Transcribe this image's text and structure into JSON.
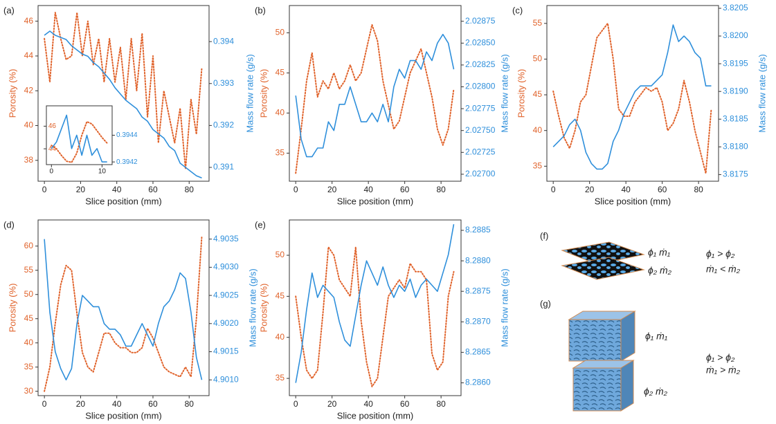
{
  "chart_data": [
    {
      "type": "line",
      "label": "(a)",
      "xlabel": "Slice position (mm)",
      "ylabel": "Porosity (%)",
      "y2label": "Mass flow rate (g/s)",
      "x": [
        0,
        3,
        6,
        9,
        12,
        15,
        18,
        21,
        24,
        27,
        30,
        33,
        36,
        39,
        42,
        45,
        48,
        51,
        54,
        57,
        60,
        63,
        66,
        69,
        72,
        75,
        78,
        81,
        84,
        87
      ],
      "series": [
        {
          "color": "#e0622a",
          "dash": "dotted",
          "values": [
            45,
            42.5,
            46.5,
            45,
            43.8,
            44,
            46.5,
            44,
            46,
            43.5,
            45,
            42.5,
            45,
            42.5,
            44.5,
            41.5,
            45,
            42,
            45.3,
            40.5,
            44,
            39,
            42,
            40.5,
            39,
            41,
            37.5,
            41.5,
            39.5,
            43.3
          ]
        },
        {
          "color": "#2e8fdb",
          "dash": "solid",
          "axis": "y2",
          "values": [
            0.39415,
            0.39425,
            0.39415,
            0.3941,
            0.39405,
            0.3939,
            0.3938,
            0.3937,
            0.39365,
            0.3935,
            0.3934,
            0.39325,
            0.3931,
            0.3929,
            0.39275,
            0.3926,
            0.3925,
            0.3924,
            0.3922,
            0.3921,
            0.3919,
            0.3918,
            0.3917,
            0.3915,
            0.3914,
            0.3911,
            0.391,
            0.3909,
            0.3908,
            0.39075
          ]
        }
      ],
      "xlim": [
        -3.5,
        91
      ],
      "xticks": [
        0,
        20,
        40,
        60,
        80
      ],
      "ylim": [
        36.8,
        46.9
      ],
      "yticks": [
        38,
        40,
        42,
        44,
        46
      ],
      "y2lim": [
        0.39067,
        0.39486
      ],
      "y2ticks": [
        0.391,
        0.392,
        0.393,
        0.394
      ]
    },
    {
      "type": "line",
      "label": "(b)",
      "xlabel": "Slice position (mm)",
      "ylabel": "Porosity (%)",
      "y2label": "Mass flow rate (g/s)",
      "x": [
        0,
        3,
        6,
        9,
        12,
        15,
        18,
        21,
        24,
        27,
        30,
        33,
        36,
        39,
        42,
        45,
        48,
        51,
        54,
        57,
        60,
        63,
        66,
        69,
        72,
        75,
        78,
        81,
        84,
        87
      ],
      "series": [
        {
          "color": "#e0622a",
          "dash": "dotted",
          "values": [
            32.5,
            38,
            44,
            47.5,
            42,
            44,
            43,
            45,
            43,
            44,
            46,
            44,
            45,
            48,
            51,
            49,
            44,
            41,
            38,
            39,
            42,
            45,
            46.5,
            48,
            45,
            42,
            38,
            36,
            38,
            43
          ]
        },
        {
          "color": "#2e8fdb",
          "dash": "solid",
          "axis": "y2",
          "values": [
            2.0279,
            2.0274,
            2.0272,
            2.0272,
            2.0273,
            2.0273,
            2.0276,
            2.0275,
            2.0278,
            2.0278,
            2.028,
            2.0278,
            2.0276,
            2.0276,
            2.0277,
            2.0276,
            2.0278,
            2.0276,
            2.028,
            2.0282,
            2.0281,
            2.0283,
            2.0283,
            2.0282,
            2.0284,
            2.0283,
            2.0285,
            2.0286,
            2.0285,
            2.0282
          ]
        }
      ],
      "xlim": [
        -3.5,
        91
      ],
      "xticks": [
        0,
        20,
        40,
        60,
        80
      ],
      "ylim": [
        31.5,
        53.4
      ],
      "yticks": [
        35,
        40,
        45,
        50
      ],
      "y2lim": [
        2.02692,
        2.02893
      ],
      "y2ticks": [
        {
          "value": 2.027,
          "label": "2.02700"
        },
        2.02725,
        {
          "value": 2.0275,
          "label": "2.02750"
        },
        2.02775,
        {
          "value": 2.028,
          "label": "2.02800"
        },
        2.02825,
        {
          "value": 2.0285,
          "label": "2.02850"
        },
        2.02875
      ]
    },
    {
      "type": "line",
      "label": "(c)",
      "xlabel": "Slice position (mm)",
      "ylabel": "Porosity (%)",
      "y2label": "Mass flow rate (g/s)",
      "x": [
        0,
        3,
        6,
        9,
        12,
        15,
        18,
        21,
        24,
        27,
        30,
        33,
        36,
        39,
        42,
        45,
        48,
        51,
        54,
        57,
        60,
        63,
        66,
        69,
        72,
        75,
        78,
        81,
        84,
        87
      ],
      "series": [
        {
          "color": "#e0622a",
          "dash": "dotted",
          "values": [
            45.5,
            42,
            39,
            37.5,
            40,
            44,
            45,
            49,
            53,
            54,
            55,
            50,
            43,
            42,
            42,
            44,
            45,
            46,
            45.5,
            46,
            44,
            40,
            41,
            43,
            47,
            44,
            40,
            37,
            34,
            43
          ]
        },
        {
          "color": "#2e8fdb",
          "dash": "solid",
          "axis": "y2",
          "values": [
            3.818,
            3.8181,
            3.8182,
            3.8184,
            3.8185,
            3.8183,
            3.8179,
            3.8177,
            3.8176,
            3.8176,
            3.8177,
            3.8181,
            3.8183,
            3.8186,
            3.8188,
            3.819,
            3.8191,
            3.8191,
            3.8191,
            3.8192,
            3.8193,
            3.8197,
            3.8202,
            3.8199,
            3.82,
            3.8199,
            3.8197,
            3.8196,
            3.8191,
            3.8191
          ]
        }
      ],
      "xlim": [
        -3.5,
        91
      ],
      "xticks": [
        0,
        20,
        40,
        60,
        80
      ],
      "ylim": [
        32.9,
        57.5
      ],
      "yticks": [
        35,
        40,
        45,
        50,
        55
      ],
      "y2lim": [
        3.81738,
        3.82055
      ],
      "y2ticks": [
        3.8175,
        {
          "value": 3.818,
          "label": "3.8180"
        },
        3.8185,
        {
          "value": 3.819,
          "label": "3.8190"
        },
        3.8195,
        {
          "value": 3.82,
          "label": "3.8200"
        },
        3.8205
      ]
    },
    {
      "type": "line",
      "label": "(d)",
      "xlabel": "Slice position (mm)",
      "ylabel": "Porosity (%)",
      "y2label": "Mass flow rate (g/s)",
      "x": [
        0,
        3,
        6,
        9,
        12,
        15,
        18,
        21,
        24,
        27,
        30,
        33,
        36,
        39,
        42,
        45,
        48,
        51,
        54,
        57,
        60,
        63,
        66,
        69,
        72,
        75,
        78,
        81,
        84,
        87
      ],
      "series": [
        {
          "color": "#e0622a",
          "dash": "dotted",
          "values": [
            30,
            35,
            44,
            52,
            56,
            55,
            46,
            38,
            35,
            34,
            38,
            42,
            42,
            40,
            39,
            39,
            38,
            38,
            39,
            43,
            41,
            38,
            35,
            34,
            33.5,
            33,
            35,
            33,
            45,
            62
          ]
        },
        {
          "color": "#2e8fdb",
          "dash": "solid",
          "axis": "y2",
          "values": [
            4.9035,
            4.9022,
            4.9015,
            4.9012,
            4.901,
            4.9012,
            4.902,
            4.9025,
            4.9024,
            4.9023,
            4.9023,
            4.902,
            4.9019,
            4.9019,
            4.9018,
            4.9016,
            4.9016,
            4.9018,
            4.902,
            4.9018,
            4.9016,
            4.902,
            4.9023,
            4.9024,
            4.9026,
            4.9029,
            4.9028,
            4.9022,
            4.9014,
            4.901
          ]
        }
      ],
      "xlim": [
        -3.5,
        91
      ],
      "xticks": [
        0,
        20,
        40,
        60,
        80
      ],
      "ylim": [
        29.1,
        65.4
      ],
      "yticks": [
        30,
        35,
        40,
        45,
        50,
        55,
        60
      ],
      "y2lim": [
        4.90072,
        4.90384
      ],
      "y2ticks": [
        {
          "value": 4.901,
          "label": "4.9010"
        },
        4.9015,
        {
          "value": 4.902,
          "label": "4.9020"
        },
        4.9025,
        {
          "value": 4.903,
          "label": "4.9030"
        },
        4.9035
      ]
    },
    {
      "type": "line",
      "label": "(e)",
      "xlabel": "Slice position (mm)",
      "ylabel": "Porosity (%)",
      "y2label": "Mass flow rate (g/s)",
      "x": [
        0,
        3,
        6,
        9,
        12,
        15,
        18,
        21,
        24,
        27,
        30,
        33,
        36,
        39,
        42,
        45,
        48,
        51,
        54,
        57,
        60,
        63,
        66,
        69,
        72,
        75,
        78,
        81,
        84,
        87
      ],
      "series": [
        {
          "color": "#e0622a",
          "dash": "dotted",
          "values": [
            45,
            40,
            36,
            35,
            36,
            43,
            51,
            50,
            47,
            46,
            45,
            51,
            42,
            37,
            34,
            35,
            40,
            45,
            46,
            47,
            46,
            49,
            48,
            48,
            47,
            38,
            36,
            37,
            45,
            48
          ]
        },
        {
          "color": "#2e8fdb",
          "dash": "solid",
          "axis": "y2",
          "values": [
            8.286,
            8.2865,
            8.2872,
            8.2878,
            8.2874,
            8.2876,
            8.2875,
            8.2874,
            8.287,
            8.2867,
            8.2866,
            8.2871,
            8.2876,
            8.288,
            8.2878,
            8.2876,
            8.2879,
            8.2876,
            8.2874,
            8.2876,
            8.2875,
            8.2877,
            8.2874,
            8.2876,
            8.2877,
            8.2876,
            8.2875,
            8.2878,
            8.2881,
            8.2886
          ]
        }
      ],
      "xlim": [
        -3.5,
        91
      ],
      "xticks": [
        0,
        20,
        40,
        60,
        80
      ],
      "ylim": [
        32.9,
        54.3
      ],
      "yticks": [
        35,
        40,
        45,
        50
      ],
      "y2lim": [
        8.28579,
        8.28867
      ],
      "y2ticks": [
        {
          "value": 8.286,
          "label": "8.2860"
        },
        8.2865,
        {
          "value": 8.287,
          "label": "8.2870"
        },
        8.2875,
        {
          "value": 8.288,
          "label": "8.2880"
        },
        8.2885
      ]
    },
    {
      "type": "line",
      "x": [
        0,
        1,
        2,
        3,
        4,
        5,
        6,
        7,
        8,
        9,
        10,
        11
      ],
      "series": [
        {
          "color": "#e0622a",
          "dash": "dotted",
          "values": [
            44.3,
            44,
            43.4,
            42.9,
            42.8,
            43.6,
            45.2,
            46.4,
            46.2,
            45.6,
            45,
            44.5
          ]
        },
        {
          "color": "#2e8fdb",
          "dash": "solid",
          "axis": "y2",
          "values": [
            0.3943,
            0.39435,
            0.39445,
            0.39455,
            0.3943,
            0.3944,
            0.39425,
            0.3944,
            0.39425,
            0.3943,
            0.3942,
            0.3942
          ]
        }
      ],
      "xlim": [
        -1,
        12
      ],
      "xticks": [
        0,
        10
      ],
      "ylim": [
        42.6,
        47.8
      ],
      "yticks": [
        44,
        46
      ],
      "y2lim": [
        0.39418,
        0.39462
      ],
      "y2ticks": [
        0.3942,
        0.3944
      ]
    }
  ],
  "diagrams": [
    {
      "label": "(f)",
      "labels": [
        "ϕ₁ ṁ₁",
        "ϕ₂ ṁ₂"
      ],
      "relations": [
        "ϕ₁ > ϕ₂",
        "ṁ₁ < ṁ₂"
      ]
    },
    {
      "label": "(g)",
      "labels": [
        "ϕ₁ ṁ₁",
        "ϕ₂ ṁ₂"
      ],
      "relations": [
        "ϕ₁ > ϕ₂",
        "ṁ₁ > ṁ₂"
      ]
    }
  ]
}
